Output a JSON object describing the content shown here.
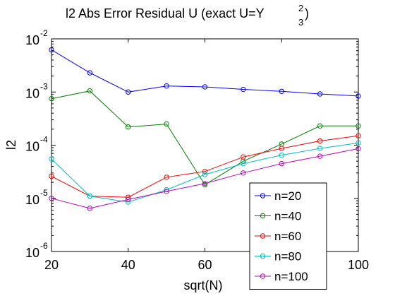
{
  "chart_data": {
    "type": "line",
    "title": "l2 Abs Error Residual U (exact U=Y",
    "title_sup": "2",
    "title_sub": "3",
    "title_end": ")",
    "xlabel": "sqrt(N)",
    "ylabel": "l2",
    "x": [
      20,
      30,
      40,
      50,
      60,
      70,
      80,
      90,
      100
    ],
    "xlim": [
      20,
      100
    ],
    "ylim": [
      1e-06,
      0.01
    ],
    "yscale": "log",
    "x_ticks": [
      20,
      40,
      60,
      80,
      100
    ],
    "x_tick_labels": [
      "20",
      "40",
      "60",
      "80",
      "100"
    ],
    "y_ticks": [
      1e-06,
      1e-05,
      0.0001,
      0.001,
      0.01
    ],
    "y_tick_labels": [
      {
        "base": "10",
        "exp": "-6"
      },
      {
        "base": "10",
        "exp": "-5"
      },
      {
        "base": "10",
        "exp": "-4"
      },
      {
        "base": "10",
        "exp": "-3"
      },
      {
        "base": "10",
        "exp": "-2"
      }
    ],
    "grid": false,
    "legend_position": "bottom-right",
    "marker": "circle",
    "series": [
      {
        "name": "n=20",
        "color": "#0000ff",
        "values": [
          0.0062,
          0.0023,
          0.001,
          0.0013,
          0.00125,
          0.00112,
          0.00103,
          0.00092,
          0.00084
        ]
      },
      {
        "name": "n=40",
        "color": "#008000",
        "values": [
          0.00075,
          0.00105,
          0.00022,
          0.00025,
          1.8e-05,
          5e-05,
          0.000105,
          0.00023,
          0.00023
        ]
      },
      {
        "name": "n=60",
        "color": "#ff0000",
        "values": [
          2.6e-05,
          1.1e-05,
          1.05e-05,
          2.5e-05,
          3.2e-05,
          6e-05,
          8.7e-05,
          0.00012,
          0.00015
        ]
      },
      {
        "name": "n=80",
        "color": "#00bfbf",
        "values": [
          5.5e-05,
          1.1e-05,
          8.5e-06,
          1.45e-05,
          2.8e-05,
          4.5e-05,
          6.5e-05,
          8.7e-05,
          0.00011
        ]
      },
      {
        "name": "n=100",
        "color": "#bf00bf",
        "values": [
          1e-05,
          6.5e-06,
          9.5e-06,
          1.35e-05,
          1.9e-05,
          3e-05,
          4.5e-05,
          6.2e-05,
          8.6e-05
        ]
      }
    ]
  }
}
